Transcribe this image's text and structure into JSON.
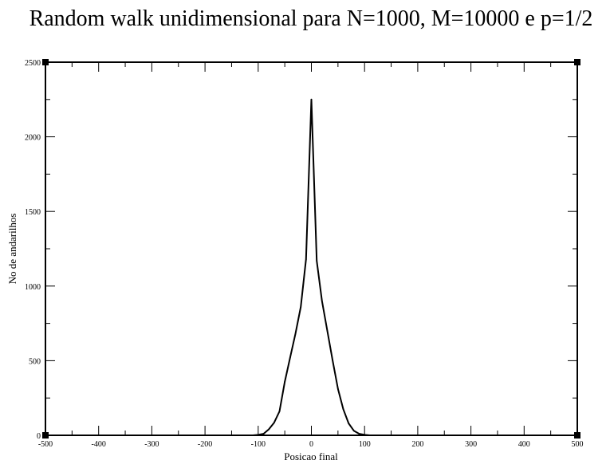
{
  "chart_data": {
    "type": "line",
    "title": "Random walk unidimensional para N=1000, M=10000 e p=1/2",
    "xlabel": "Posicao final",
    "ylabel": "No de andarilhos",
    "xlim": [
      -500,
      500
    ],
    "ylim": [
      0,
      2500
    ],
    "x_ticks": [
      "-500",
      "-400",
      "-300",
      "-200",
      "-100",
      "0",
      "100",
      "200",
      "300",
      "400",
      "500"
    ],
    "y_ticks": [
      "0",
      "500",
      "1000",
      "1500",
      "2000",
      "2500"
    ],
    "grid": false,
    "line_color": "#000000",
    "series": [
      {
        "x": [
          -500,
          -110,
          -100,
          -90,
          -80,
          -70,
          -60,
          -50,
          -40,
          -30,
          -20,
          -10,
          0,
          10,
          20,
          30,
          40,
          50,
          60,
          70,
          80,
          90,
          100,
          110,
          500
        ],
        "values": [
          0,
          0,
          3,
          10,
          40,
          85,
          160,
          360,
          520,
          680,
          860,
          1180,
          2250,
          1170,
          900,
          700,
          500,
          310,
          175,
          80,
          30,
          10,
          3,
          0,
          0
        ]
      }
    ]
  }
}
